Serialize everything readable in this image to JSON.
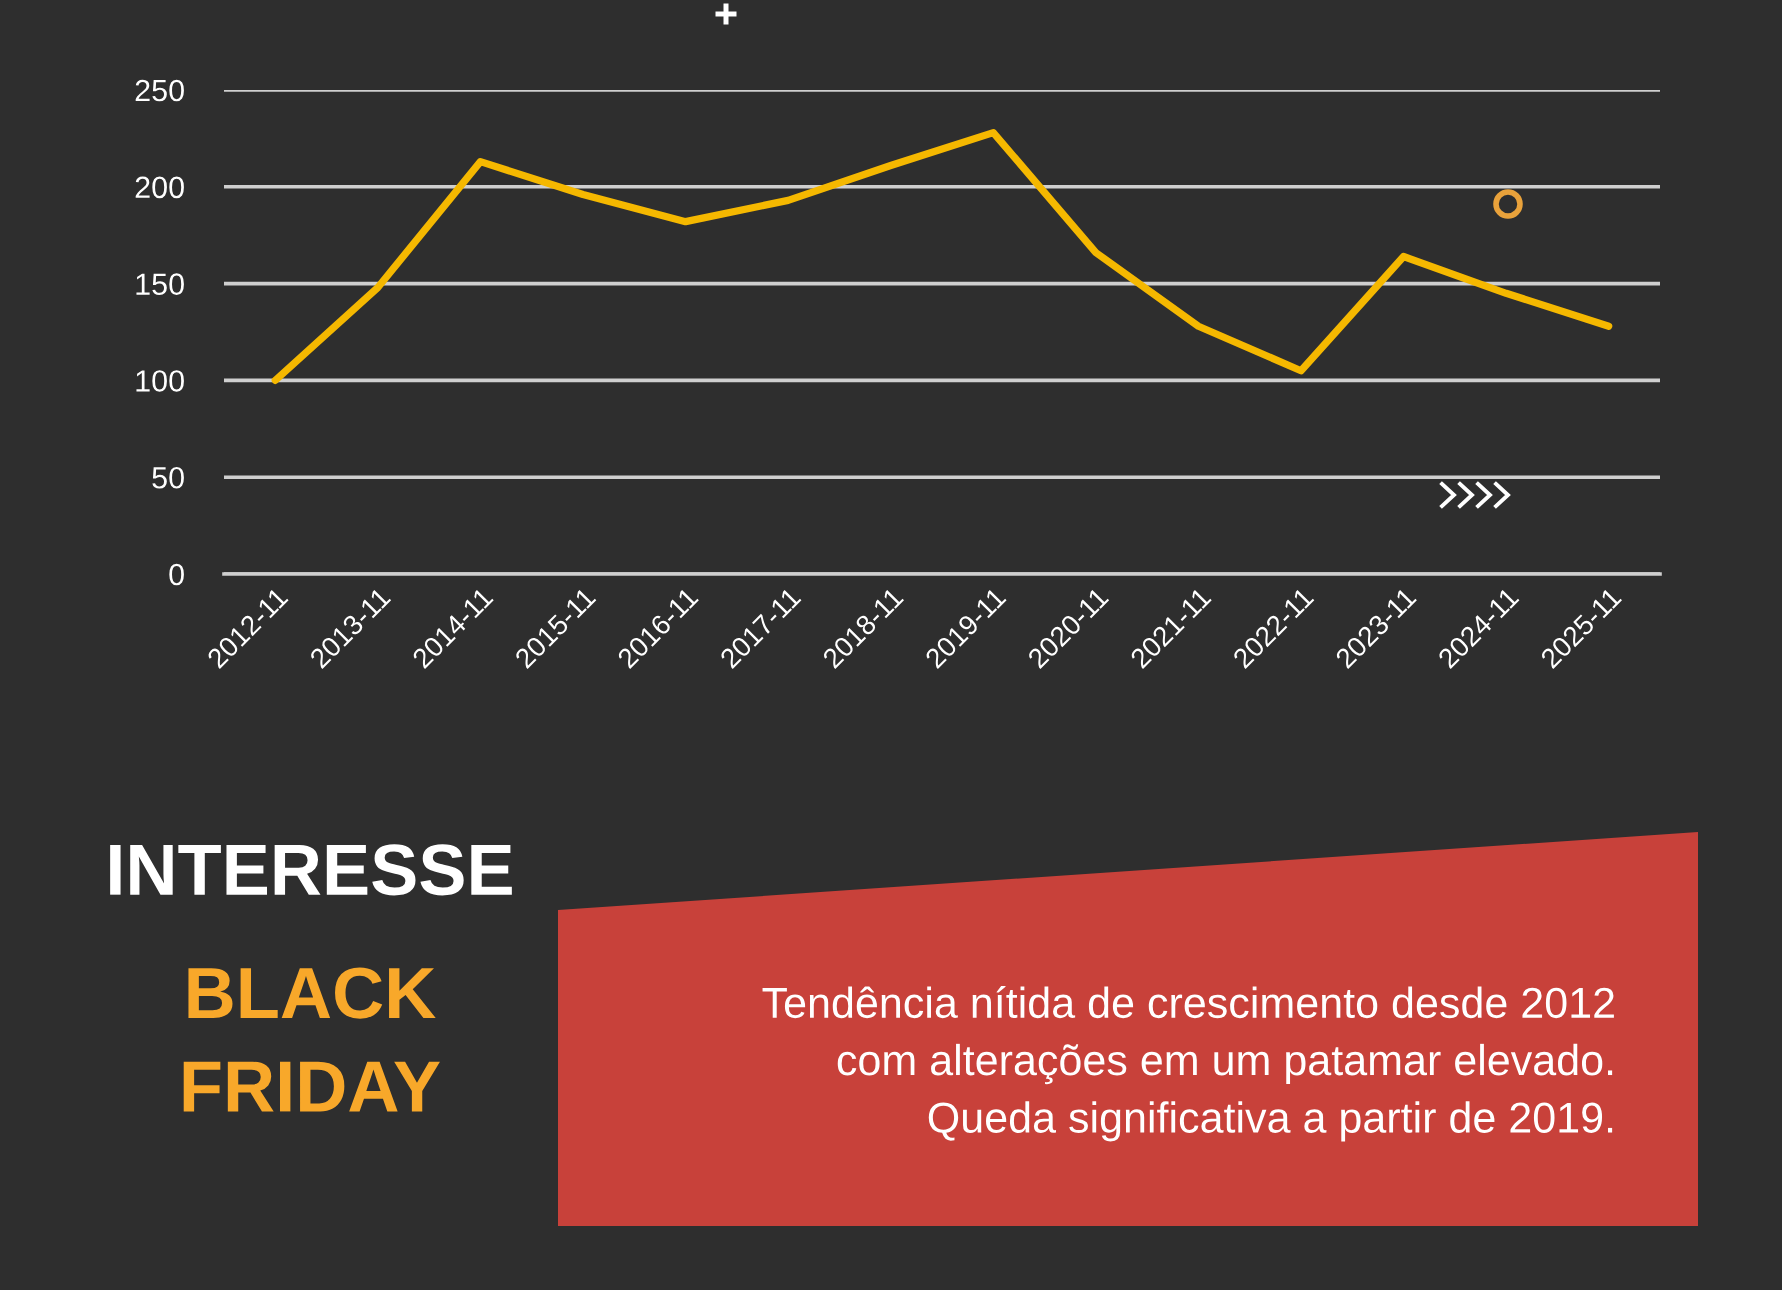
{
  "chart_data": {
    "type": "line",
    "title": "INTERESSE",
    "subtitle": "BLACK\nFRIDAY",
    "categories": [
      "2012-11",
      "2013-11",
      "2014-11",
      "2015-11",
      "2016-11",
      "2017-11",
      "2018-11",
      "2019-11",
      "2020-11",
      "2021-11",
      "2022-11",
      "2023-11",
      "2024-11",
      "2025-11"
    ],
    "series": [
      {
        "color": "#f5b800",
        "values": [
          100,
          148,
          213,
          196,
          182,
          193,
          211,
          228,
          166,
          128,
          105,
          164,
          145,
          128
        ]
      }
    ],
    "ylim": [
      0,
      250
    ],
    "yticks": [
      0,
      50,
      100,
      150,
      200,
      250
    ],
    "grid": "y",
    "line_style": "solid",
    "annotations": [
      "Tendência nítida de crescimento desde 2012\ncom alterações em um patamar elevado.\nQueda significativa a partir de 2019."
    ]
  }
}
